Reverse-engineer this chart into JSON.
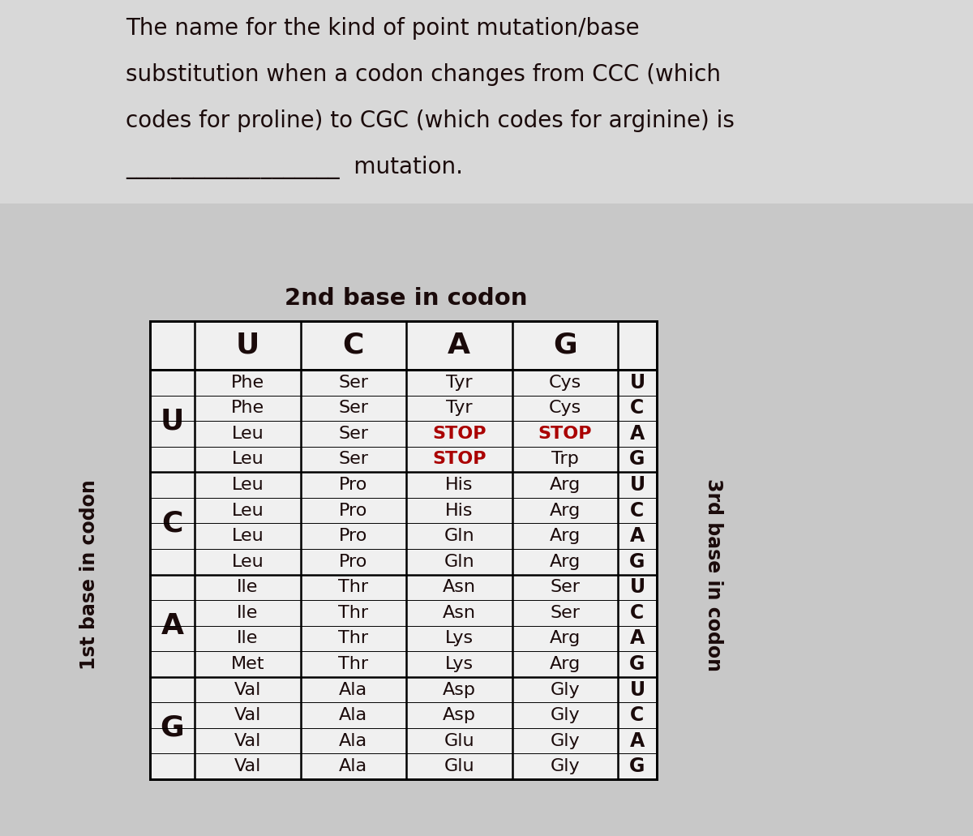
{
  "title_lines": [
    "The name for the kind of point mutation/base",
    "substitution when a codon changes from CCC (which",
    "codes for proline) to CGC (which codes for arginine) is",
    "___________________  mutation."
  ],
  "table_title": "2nd base in codon",
  "col_headers": [
    "U",
    "C",
    "A",
    "G"
  ],
  "row_headers": [
    "U",
    "C",
    "A",
    "G"
  ],
  "ylabel_left": "1st base in codon",
  "ylabel_right": "3rd base in codon",
  "third_base_labels": [
    [
      "U",
      "C",
      "A",
      "G"
    ],
    [
      "U",
      "C",
      "A",
      "G"
    ],
    [
      "U",
      "C",
      "A",
      "G"
    ],
    [
      "U",
      "C",
      "A",
      "G"
    ]
  ],
  "cells": [
    [
      [
        "Phe",
        "Phe",
        "Leu",
        "Leu"
      ],
      [
        "Ser",
        "Ser",
        "Ser",
        "Ser"
      ],
      [
        "Tyr",
        "Tyr",
        "STOP",
        "STOP"
      ],
      [
        "Cys",
        "Cys",
        "STOP",
        "Trp"
      ]
    ],
    [
      [
        "Leu",
        "Leu",
        "Leu",
        "Leu"
      ],
      [
        "Pro",
        "Pro",
        "Pro",
        "Pro"
      ],
      [
        "His",
        "His",
        "Gln",
        "Gln"
      ],
      [
        "Arg",
        "Arg",
        "Arg",
        "Arg"
      ]
    ],
    [
      [
        "Ile",
        "Ile",
        "Ile",
        "Met"
      ],
      [
        "Thr",
        "Thr",
        "Thr",
        "Thr"
      ],
      [
        "Asn",
        "Asn",
        "Lys",
        "Lys"
      ],
      [
        "Ser",
        "Ser",
        "Arg",
        "Arg"
      ]
    ],
    [
      [
        "Val",
        "Val",
        "Val",
        "Val"
      ],
      [
        "Ala",
        "Ala",
        "Ala",
        "Ala"
      ],
      [
        "Asp",
        "Asp",
        "Glu",
        "Glu"
      ],
      [
        "Gly",
        "Gly",
        "Gly",
        "Gly"
      ]
    ]
  ],
  "stop_color": "#aa0000",
  "normal_color": "#1a0a0a",
  "header_color": "#1a0a0a",
  "bg_color": "#c8c8c8",
  "table_bg": "#f0f0f0",
  "title_fontsize": 20,
  "header_fontsize": 26,
  "cell_fontsize": 16,
  "axis_label_fontsize": 17
}
